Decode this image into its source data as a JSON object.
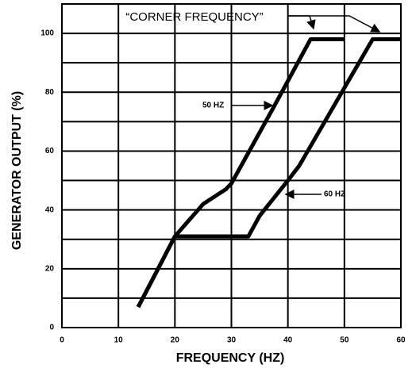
{
  "chart_data": {
    "type": "line",
    "xlabel": "FREQUENCY (HZ)",
    "ylabel": "GENERATOR OUTPUT (%)",
    "annotation": "“CORNER FREQUENCY”",
    "xlim": [
      0,
      60
    ],
    "xticks": [
      0,
      10,
      20,
      30,
      40,
      50,
      60
    ],
    "ylim": [
      0,
      110
    ],
    "yticks": [
      0,
      20,
      40,
      60,
      80,
      100
    ],
    "yminor": [
      10,
      30,
      50,
      70,
      90
    ],
    "grid": true,
    "series": [
      {
        "name": "50 HZ",
        "color": "#000000",
        "x": [
          13.5,
          20,
          25,
          29,
          30,
          37.5,
          44,
          50
        ],
        "values": [
          7,
          31,
          42,
          47,
          49,
          75,
          98,
          98
        ]
      },
      {
        "name": "60 HZ",
        "color": "#000000",
        "x": [
          13.5,
          20,
          33,
          35,
          40,
          42,
          49.4,
          55,
          60
        ],
        "values": [
          7,
          31,
          31,
          38,
          50,
          55,
          79.5,
          98,
          98
        ]
      }
    ]
  }
}
